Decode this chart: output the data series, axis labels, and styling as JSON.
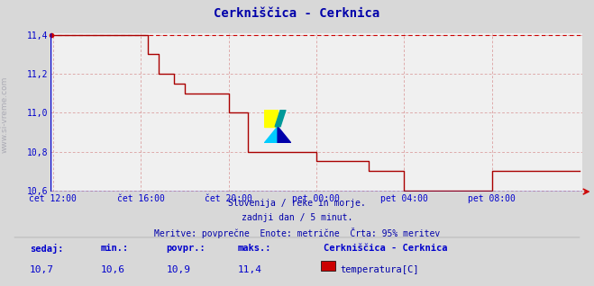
{
  "title": "Cerkniščica - Cerknica",
  "bg_color": "#d8d8d8",
  "plot_bg_color": "#f0f0f0",
  "line_color": "#aa0000",
  "dashed_line_color": "#cc0000",
  "axis_color": "#0000cc",
  "grid_color": "#cc6666",
  "text_color": "#0000aa",
  "ylabel_text": "www.si-vreme.com",
  "subtitle1": "Slovenija / reke in morje.",
  "subtitle2": "zadnji dan / 5 minut.",
  "subtitle3": "Meritve: povprečne  Enote: metrične  Črta: 95% meritev",
  "label_sedaj": "sedaj:",
  "label_min": "min.:",
  "label_povpr": "povpr.:",
  "label_maks": "maks.:",
  "val_sedaj": "10,7",
  "val_min": "10,6",
  "val_povpr": "10,9",
  "val_maks": "11,4",
  "legend_title": "Cerkniščica - Cerknica",
  "legend_item": "temperatura[C]",
  "legend_color": "#cc0000",
  "ylim_min": 10.6,
  "ylim_max": 11.4,
  "ytick_vals": [
    10.6,
    10.8,
    11.0,
    11.2,
    11.4
  ],
  "ytick_labels": [
    "10,6",
    "10,8",
    "11,0",
    "11,2",
    "11,4"
  ],
  "max_line_y": 11.4,
  "xtick_labels": [
    "čet 12:00",
    "čet 16:00",
    "čet 20:00",
    "pet 00:00",
    "pet 04:00",
    "pet 08:00"
  ],
  "xtick_positions": [
    0.0,
    0.1667,
    0.3333,
    0.5,
    0.6667,
    0.8333
  ],
  "time_data": [
    0.0,
    0.01,
    0.02,
    0.03,
    0.04,
    0.05,
    0.06,
    0.07,
    0.08,
    0.09,
    0.1,
    0.11,
    0.12,
    0.13,
    0.14,
    0.15,
    0.16,
    0.1667,
    0.17,
    0.175,
    0.18,
    0.185,
    0.19,
    0.195,
    0.2,
    0.205,
    0.21,
    0.215,
    0.22,
    0.225,
    0.23,
    0.235,
    0.24,
    0.245,
    0.25,
    0.255,
    0.26,
    0.265,
    0.27,
    0.275,
    0.28,
    0.285,
    0.29,
    0.295,
    0.3,
    0.305,
    0.31,
    0.315,
    0.32,
    0.3333,
    0.34,
    0.345,
    0.35,
    0.355,
    0.36,
    0.37,
    0.38,
    0.39,
    0.4,
    0.41,
    0.42,
    0.43,
    0.44,
    0.45,
    0.46,
    0.47,
    0.48,
    0.49,
    0.5,
    0.51,
    0.52,
    0.53,
    0.54,
    0.55,
    0.56,
    0.57,
    0.58,
    0.59,
    0.6,
    0.61,
    0.62,
    0.63,
    0.64,
    0.6667,
    0.67,
    0.68,
    0.69,
    0.7,
    0.71,
    0.72,
    0.73,
    0.74,
    0.75,
    0.76,
    0.77,
    0.78,
    0.79,
    0.8,
    0.8333,
    0.84,
    0.85,
    0.86,
    0.87,
    0.88,
    0.89,
    0.9,
    0.91,
    0.92,
    0.93,
    0.94,
    0.95,
    0.96,
    0.97,
    0.98,
    0.99,
    1.0
  ],
  "value_data": [
    11.4,
    11.4,
    11.4,
    11.4,
    11.4,
    11.4,
    11.4,
    11.4,
    11.4,
    11.4,
    11.4,
    11.4,
    11.4,
    11.4,
    11.4,
    11.4,
    11.4,
    11.4,
    11.4,
    11.4,
    11.3,
    11.3,
    11.3,
    11.3,
    11.2,
    11.2,
    11.2,
    11.2,
    11.2,
    11.2,
    11.15,
    11.15,
    11.15,
    11.15,
    11.1,
    11.1,
    11.1,
    11.1,
    11.1,
    11.1,
    11.1,
    11.1,
    11.1,
    11.1,
    11.1,
    11.1,
    11.1,
    11.1,
    11.1,
    11.0,
    11.0,
    11.0,
    11.0,
    11.0,
    11.0,
    10.8,
    10.8,
    10.8,
    10.8,
    10.8,
    10.8,
    10.8,
    10.8,
    10.8,
    10.8,
    10.8,
    10.8,
    10.8,
    10.75,
    10.75,
    10.75,
    10.75,
    10.75,
    10.75,
    10.75,
    10.75,
    10.75,
    10.75,
    10.7,
    10.7,
    10.7,
    10.7,
    10.7,
    10.6,
    10.6,
    10.6,
    10.6,
    10.6,
    10.6,
    10.6,
    10.6,
    10.6,
    10.6,
    10.6,
    10.6,
    10.6,
    10.6,
    10.6,
    10.7,
    10.7,
    10.7,
    10.7,
    10.7,
    10.7,
    10.7,
    10.7,
    10.7,
    10.7,
    10.7,
    10.7,
    10.7,
    10.7,
    10.7,
    10.7,
    10.7,
    10.7
  ]
}
